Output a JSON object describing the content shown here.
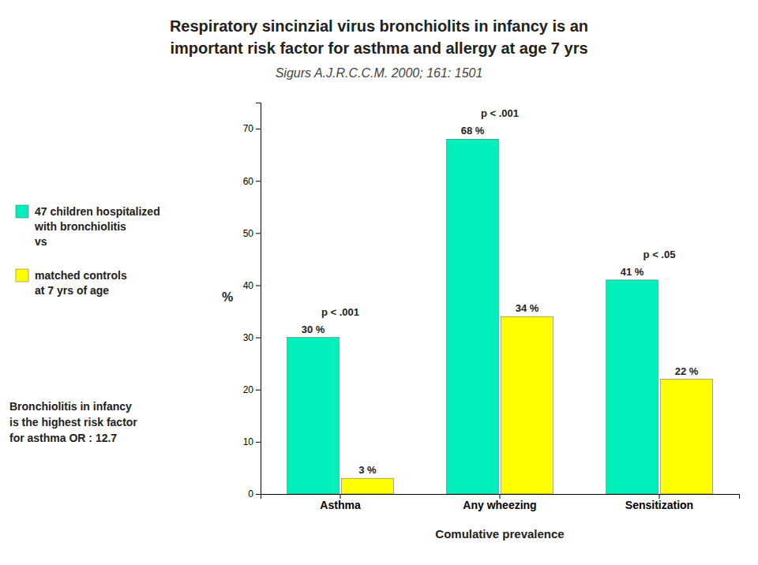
{
  "chart_data": {
    "type": "bar",
    "title": [
      "Respiratory sincinzial virus bronchiolits in infancy is an",
      "important risk factor for asthma and allergy at age 7 yrs"
    ],
    "subtitle": "Sigurs   A.J.R.C.C.M. 2000; 161: 1501",
    "x_label": "Comulative prevalence",
    "y_label": "%",
    "categories": [
      "Asthma",
      "Any wheezing",
      "Sensitization"
    ],
    "series": [
      {
        "name": [
          "47 children hospitalized",
          "with bronchiolitis",
          "vs"
        ],
        "color": "#00EFBB",
        "values": [
          30,
          68,
          41
        ],
        "value_labels": [
          "30 %",
          "68 %",
          "41 %"
        ]
      },
      {
        "name": [
          "matched  controls",
          "at 7 yrs of age"
        ],
        "color": "#FFFF00",
        "values": [
          3,
          34,
          22
        ],
        "value_labels": [
          "3 %",
          "34 %",
          "22 %"
        ]
      }
    ],
    "ylim": [
      0,
      75
    ],
    "yticks": [
      0,
      10,
      20,
      30,
      40,
      50,
      60,
      70
    ],
    "grid": false,
    "legend": "left",
    "data_labels": true,
    "annotations": [
      {
        "text": "p < .001",
        "category": "Asthma"
      },
      {
        "text": "p < .001",
        "category": "Any wheezing"
      },
      {
        "text": "p < .05",
        "category": "Sensitization"
      },
      {
        "text": "Bronchiolitis in infancy"
      },
      {
        "text": "is the highest risk factor"
      },
      {
        "text": "for asthma OR : 12.7"
      }
    ]
  }
}
